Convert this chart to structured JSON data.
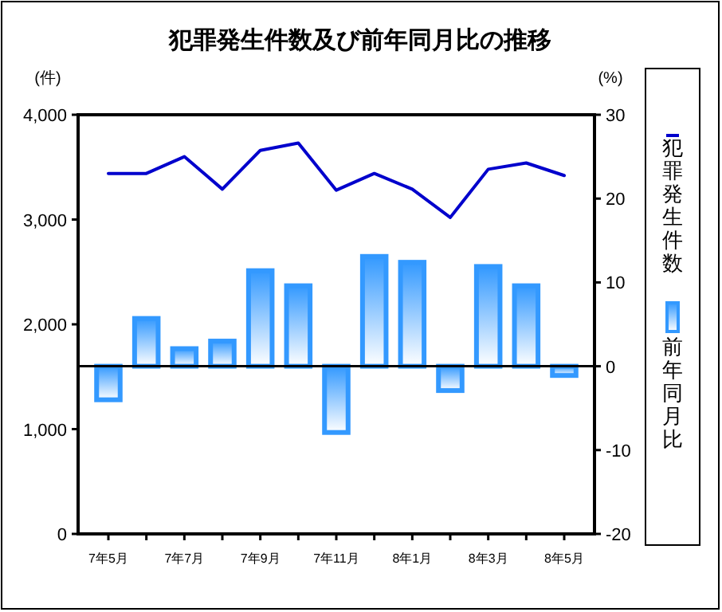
{
  "chart_data": {
    "type": "bar",
    "title": "犯罪発生件数及び前年同月比の推移",
    "ylabel": "(件)",
    "y2label": "(%)",
    "categories": [
      "7年5月",
      null,
      "7年7月",
      null,
      "7年9月",
      null,
      "7年11月",
      null,
      "8年1月",
      null,
      "8年3月",
      null,
      "8年5月"
    ],
    "series": [
      {
        "name": "犯罪発生件数",
        "type": "line",
        "color": "#0000cc",
        "values": [
          3440,
          3440,
          3600,
          3290,
          3660,
          3730,
          3280,
          3440,
          3290,
          3020,
          3480,
          3540,
          3420
        ]
      },
      {
        "name": "前年同月比",
        "axis": "y2",
        "color": "#3399ff",
        "values": [
          -4.0,
          5.7,
          2.1,
          3.0,
          11.4,
          9.6,
          -7.9,
          13.1,
          12.4,
          -2.9,
          11.9,
          9.6,
          -1.1
        ]
      }
    ],
    "ylim": [
      0,
      4000
    ],
    "yticks": [
      {
        "value": 0,
        "label": "0"
      },
      {
        "value": 1000,
        "label": "1,000"
      },
      {
        "value": 2000,
        "label": "2,000"
      },
      {
        "value": 3000,
        "label": "3,000"
      },
      {
        "value": 4000,
        "label": "4,000"
      }
    ],
    "y2lim": [
      -20,
      30
    ],
    "y2ticks": [
      -20,
      -10,
      0,
      10,
      20,
      30
    ],
    "ref_lines": [
      {
        "axis": "y2",
        "value": 0,
        "color": "#000000"
      }
    ],
    "grid": false,
    "legend": "right",
    "marker": "none",
    "line_style": "solid"
  }
}
